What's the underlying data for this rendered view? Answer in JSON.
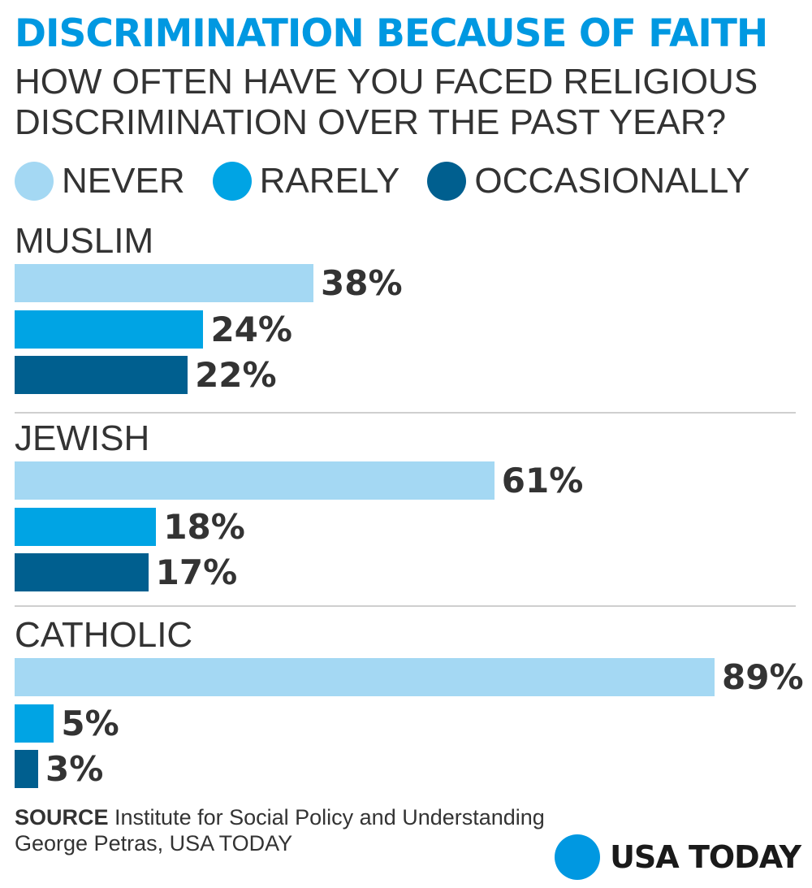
{
  "chart_data": {
    "type": "bar",
    "orientation": "horizontal",
    "title": "DISCRIMINATION BECAUSE OF FAITH",
    "subtitle": "HOW OFTEN HAVE YOU FACED RELIGIOUS DISCRIMINATION OVER THE PAST YEAR?",
    "categories": [
      "MUSLIM",
      "JEWISH",
      "CATHOLIC"
    ],
    "series": [
      {
        "name": "NEVER",
        "color": "#a4d8f3",
        "values": [
          38,
          61,
          89
        ],
        "labels": [
          "38%",
          "61%",
          "89%"
        ]
      },
      {
        "name": "RARELY",
        "color": "#00a4e4",
        "values": [
          24,
          18,
          5
        ],
        "labels": [
          "24%",
          "18%",
          "5%"
        ]
      },
      {
        "name": "OCCASIONALLY",
        "color": "#005f8f",
        "values": [
          22,
          17,
          3
        ],
        "labels": [
          "22%",
          "17%",
          "3%"
        ]
      }
    ],
    "xlim": [
      0,
      100
    ],
    "unit": "%"
  },
  "footer": {
    "source_label": "SOURCE",
    "source_text": "Institute for Social Policy and Understanding",
    "credit": "George Petras, USA TODAY"
  },
  "brand": {
    "name": "USA TODAY",
    "color": "#0098e1"
  }
}
